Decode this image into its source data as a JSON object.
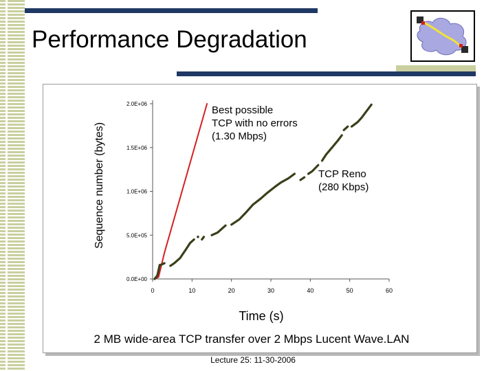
{
  "slide": {
    "title": "Performance Degradation",
    "caption": "2 MB wide-area TCP transfer over 2 Mbps Lucent Wave.LAN",
    "footer": "Lecture 25: 11-30-2006"
  },
  "colors": {
    "navy_bar": "#1f3864",
    "olive_stripe": "#c9cf9e",
    "ideal_line": "#d42020",
    "reno_line": "#3a3f1a"
  },
  "logo": {
    "icon": "network-cloud-icon"
  },
  "chart_data": {
    "type": "line",
    "xlabel": "Time (s)",
    "ylabel": "Sequence number (bytes)",
    "xlim": [
      0,
      60
    ],
    "ylim": [
      0,
      2000000
    ],
    "x_ticks": [
      0,
      10,
      20,
      30,
      40,
      50,
      60
    ],
    "x_tick_labels": [
      "0",
      "10",
      "20",
      "30",
      "40",
      "50",
      "60"
    ],
    "y_ticks": [
      0,
      500000,
      1000000,
      1500000,
      2000000
    ],
    "y_tick_labels": [
      "0.0E+00",
      "5.0E+05",
      "1.0E+06",
      "1.5E+06",
      "2.0E+06"
    ],
    "annotations": {
      "ideal": [
        "Best possible",
        "TCP with no errors",
        "(1.30 Mbps)"
      ],
      "reno": [
        "TCP Reno",
        "(280 Kbps)"
      ]
    },
    "series": [
      {
        "name": "Best possible TCP with no errors (1.30 Mbps)",
        "color": "#d42020",
        "segments": [
          [
            [
              0.5,
              0
            ],
            [
              1.5,
              20000
            ],
            [
              3,
              300000
            ],
            [
              13.8,
              2000000
            ]
          ]
        ]
      },
      {
        "name": "TCP Reno (280 Kbps)",
        "color": "#3a3f1a",
        "segments": [
          [
            [
              0.5,
              0
            ],
            [
              1.2,
              40000
            ],
            [
              1.8,
              160000
            ]
          ],
          [
            [
              2,
              160000
            ],
            [
              3,
              180000
            ]
          ],
          [
            [
              4.5,
              150000
            ],
            [
              5.5,
              180000
            ],
            [
              7,
              240000
            ],
            [
              8.5,
              340000
            ],
            [
              9.5,
              410000
            ],
            [
              10.5,
              450000
            ]
          ],
          [
            [
              11.5,
              480000
            ]
          ],
          [
            [
              12.5,
              450000
            ],
            [
              13,
              480000
            ]
          ],
          [
            [
              15,
              500000
            ],
            [
              16.5,
              530000
            ],
            [
              17.5,
              570000
            ],
            [
              18.5,
              610000
            ]
          ],
          [
            [
              20,
              620000
            ],
            [
              22,
              680000
            ],
            [
              23.5,
              750000
            ],
            [
              25.5,
              850000
            ],
            [
              27.5,
              920000
            ],
            [
              29,
              980000
            ],
            [
              31,
              1050000
            ],
            [
              32.5,
              1100000
            ],
            [
              34.5,
              1150000
            ],
            [
              36,
              1200000
            ]
          ],
          [
            [
              37.5,
              1130000
            ],
            [
              38.5,
              1160000
            ]
          ],
          [
            [
              39.5,
              1200000
            ],
            [
              40.5,
              1230000
            ],
            [
              42,
              1300000
            ]
          ],
          [
            [
              43,
              1350000
            ],
            [
              44,
              1420000
            ],
            [
              45.5,
              1500000
            ],
            [
              47,
              1580000
            ],
            [
              48,
              1640000
            ]
          ],
          [
            [
              48.5,
              1700000
            ],
            [
              49.5,
              1740000
            ]
          ],
          [
            [
              50.5,
              1740000
            ],
            [
              52,
              1790000
            ],
            [
              53,
              1840000
            ],
            [
              54,
              1900000
            ],
            [
              55.5,
              1990000
            ]
          ]
        ]
      }
    ]
  }
}
